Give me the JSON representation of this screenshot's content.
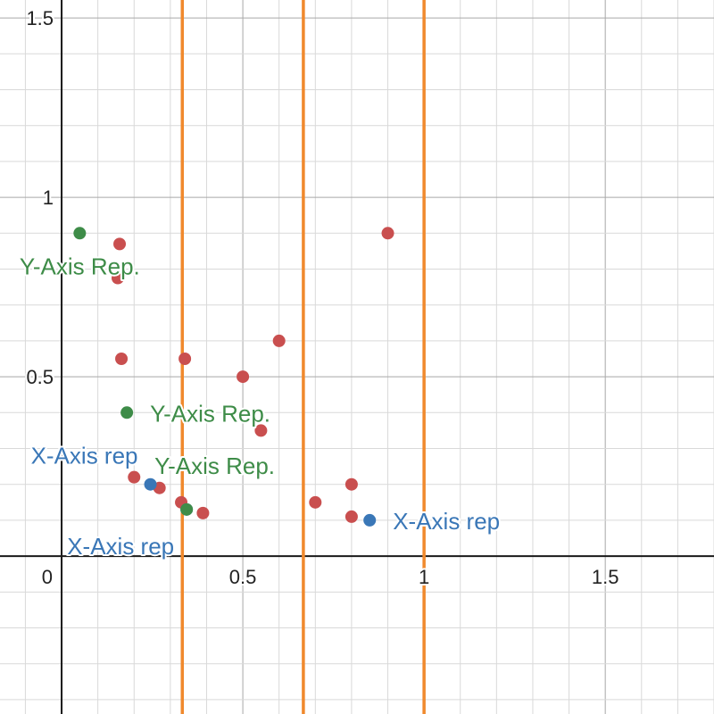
{
  "chart_data": {
    "type": "scatter",
    "xlim": [
      -0.17,
      1.8
    ],
    "ylim": [
      -0.44,
      1.55
    ],
    "grid": true,
    "x_major_step": 0.5,
    "y_major_step": 0.5,
    "minor_divisions": 5,
    "x_tick_labels": [
      {
        "value": 0,
        "label": "0"
      },
      {
        "value": 0.5,
        "label": "0.5"
      },
      {
        "value": 1,
        "label": "1"
      },
      {
        "value": 1.5,
        "label": "1.5"
      }
    ],
    "y_tick_labels": [
      {
        "value": 0.5,
        "label": "0.5"
      },
      {
        "value": 1,
        "label": "1"
      },
      {
        "value": 1.5,
        "label": "1.5"
      }
    ],
    "vertical_lines": {
      "color": "#f0892d",
      "x": [
        0.333,
        0.667,
        1.0
      ]
    },
    "series": [
      {
        "color": "#c94f4f",
        "points": [
          {
            "x": 0.155,
            "y": 0.775
          },
          {
            "x": 0.16,
            "y": 0.87
          },
          {
            "x": 0.165,
            "y": 0.55
          },
          {
            "x": 0.2,
            "y": 0.22
          },
          {
            "x": 0.27,
            "y": 0.19
          },
          {
            "x": 0.33,
            "y": 0.15
          },
          {
            "x": 0.34,
            "y": 0.55
          },
          {
            "x": 0.39,
            "y": 0.12
          },
          {
            "x": 0.5,
            "y": 0.5
          },
          {
            "x": 0.55,
            "y": 0.35
          },
          {
            "x": 0.6,
            "y": 0.6
          },
          {
            "x": 0.7,
            "y": 0.15
          },
          {
            "x": 0.8,
            "y": 0.2
          },
          {
            "x": 0.8,
            "y": 0.11
          },
          {
            "x": 0.9,
            "y": 0.9
          }
        ]
      },
      {
        "color": "#3a77b7",
        "points": [
          {
            "x": 0.245,
            "y": 0.2,
            "label": "X-Axis rep",
            "label_anchor": "upper-left"
          },
          {
            "x": 0.345,
            "y": 0.13,
            "label": "X-Axis rep",
            "label_anchor": "lower-left"
          },
          {
            "x": 0.85,
            "y": 0.1,
            "label": "X-Axis rep",
            "label_anchor": "right"
          }
        ]
      },
      {
        "color": "#3e8c48",
        "points": [
          {
            "x": 0.05,
            "y": 0.9,
            "label": "Y-Axis Rep.",
            "label_anchor": "below"
          },
          {
            "x": 0.18,
            "y": 0.4,
            "label": "Y-Axis Rep.",
            "label_anchor": "right"
          },
          {
            "x": 0.345,
            "y": 0.13,
            "label": "Y-Axis Rep.",
            "label_anchor": "above"
          }
        ]
      }
    ]
  }
}
